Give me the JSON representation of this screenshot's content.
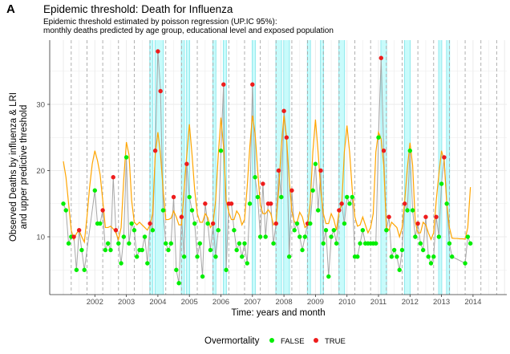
{
  "panel_label": "A",
  "chart_data": {
    "type": "line",
    "title": "Epidemic threshold: Death for Influenza",
    "subtitle_lines": [
      "Epidemic threshold estimated by poisson regression (UP.IC 95%):",
      "monthly deaths predicted by age group, educational level and exposed population"
    ],
    "xlabel": "Time: years and month",
    "ylabel_lines": [
      "Observed Deaths by influenza & LRI",
      "and upper predictive threshold"
    ],
    "x_ticks": [
      "2002",
      "2003",
      "2004",
      "2005",
      "2006",
      "2007",
      "2008",
      "2009",
      "2010",
      "2011",
      "2012",
      "2013",
      "2014"
    ],
    "y_ticks": [
      10,
      20,
      30
    ],
    "ylim": [
      2,
      40
    ],
    "xlim": [
      "2000-01",
      "2014-12"
    ],
    "grid": true,
    "legend": {
      "position": "bottom",
      "title": "Overmortality",
      "entries": [
        "FALSE",
        "TRUE"
      ]
    },
    "colors": {
      "false": "#00ee00",
      "true": "#ee1c1c",
      "observed_line": "#a6a6a6",
      "threshold_line": "#ffa500",
      "band": "#c8fbfb",
      "band_edge": "#7fe5ea"
    },
    "threshold": {
      "start": "2001-01",
      "values": [
        21.4,
        19,
        15,
        11,
        9.6,
        10.5,
        11,
        10,
        9.2,
        13,
        17.5,
        21,
        23,
        21.5,
        19.4,
        15.5,
        11.4,
        11.4,
        11.6,
        11.2,
        10.6,
        9.6,
        11.4,
        18.7,
        24.3,
        22.4,
        15.5,
        12.2,
        11.8,
        12.2,
        11.8,
        11.4,
        11,
        11.8,
        13.5,
        22.4,
        25.8,
        22.4,
        17.1,
        12.6,
        12.6,
        12.8,
        13.9,
        13,
        11.8,
        11.8,
        17.1,
        22.4,
        27,
        22.4,
        17.1,
        13.5,
        12.2,
        12.2,
        13.5,
        12.9,
        11.4,
        12,
        15.5,
        22.4,
        28,
        23.6,
        15.5,
        13.7,
        12.6,
        12.6,
        13.9,
        13.3,
        11.8,
        12.6,
        17.5,
        23.6,
        28.3,
        25.7,
        20,
        14.8,
        13.5,
        13.5,
        14.1,
        13.5,
        11.8,
        12.2,
        17.1,
        23.6,
        28.3,
        24.8,
        18.7,
        13.9,
        12.2,
        12.2,
        13.7,
        13,
        11.4,
        11.8,
        15,
        22.8,
        27.7,
        22.8,
        17.1,
        13.5,
        12,
        12,
        13.5,
        12.6,
        11,
        13.9,
        14.8,
        22.8,
        26.8,
        22.8,
        17.1,
        13,
        11.6,
        11.8,
        13,
        11.8,
        10.6,
        11.4,
        13.5,
        22.8,
        25.8,
        24.8,
        20.8,
        11.4,
        11,
        12.2,
        11.8,
        11.4,
        10,
        11.4,
        15.5,
        20.4,
        24.2,
        20.8,
        12.2,
        10.6,
        10.6,
        12.2,
        11.8,
        10.6,
        9.6,
        10.6,
        15.5,
        19.5,
        23,
        21.5,
        15,
        11.4,
        9.8,
        9.75,
        9.75,
        9.7,
        9.7,
        9.65,
        11.4,
        17.5
      ]
    },
    "observed": [
      [
        "2001-01",
        15,
        false
      ],
      [
        "2001-02",
        14,
        false
      ],
      [
        "2001-03",
        9,
        false
      ],
      [
        "2001-04",
        10,
        false
      ],
      [
        "2001-05",
        10,
        true
      ],
      [
        "2001-06",
        5,
        false
      ],
      [
        "2001-07",
        11,
        true
      ],
      [
        "2001-08",
        8,
        false
      ],
      [
        "2001-09",
        5,
        false
      ],
      [
        "2002-01",
        17,
        false
      ],
      [
        "2002-02",
        12,
        false
      ],
      [
        "2002-03",
        12,
        false
      ],
      [
        "2002-04",
        14,
        true
      ],
      [
        "2002-05",
        8,
        false
      ],
      [
        "2002-06",
        9,
        false
      ],
      [
        "2002-07",
        8,
        false
      ],
      [
        "2002-08",
        19,
        true
      ],
      [
        "2002-09",
        11,
        true
      ],
      [
        "2002-10",
        9,
        false
      ],
      [
        "2002-11",
        6,
        false
      ],
      [
        "2002-12",
        10,
        false
      ],
      [
        "2003-01",
        22,
        false
      ],
      [
        "2003-02",
        9,
        false
      ],
      [
        "2003-03",
        12,
        false
      ],
      [
        "2003-04",
        11,
        false
      ],
      [
        "2003-05",
        7,
        false
      ],
      [
        "2003-06",
        8,
        false
      ],
      [
        "2003-07",
        8,
        false
      ],
      [
        "2003-08",
        10,
        false
      ],
      [
        "2003-09",
        6,
        false
      ],
      [
        "2003-10",
        12,
        true
      ],
      [
        "2003-11",
        11,
        false
      ],
      [
        "2003-12",
        23,
        true
      ],
      [
        "2004-01",
        38,
        true
      ],
      [
        "2004-02",
        32,
        true
      ],
      [
        "2004-03",
        14,
        false
      ],
      [
        "2004-04",
        9,
        false
      ],
      [
        "2004-05",
        8,
        false
      ],
      [
        "2004-06",
        9,
        false
      ],
      [
        "2004-07",
        16,
        true
      ],
      [
        "2004-08",
        5,
        false
      ],
      [
        "2004-09",
        3,
        false
      ],
      [
        "2004-10",
        13,
        true
      ],
      [
        "2004-11",
        7,
        false
      ],
      [
        "2004-12",
        21,
        true
      ],
      [
        "2005-01",
        16,
        false
      ],
      [
        "2005-02",
        14,
        false
      ],
      [
        "2005-03",
        12,
        false
      ],
      [
        "2005-04",
        7,
        false
      ],
      [
        "2005-05",
        9,
        false
      ],
      [
        "2005-06",
        4,
        false
      ],
      [
        "2005-07",
        15,
        true
      ],
      [
        "2005-08",
        12,
        false
      ],
      [
        "2005-09",
        8,
        false
      ],
      [
        "2005-10",
        12,
        true
      ],
      [
        "2005-11",
        7,
        false
      ],
      [
        "2005-12",
        11,
        false
      ],
      [
        "2006-01",
        23,
        false
      ],
      [
        "2006-02",
        33,
        true
      ],
      [
        "2006-03",
        5,
        false
      ],
      [
        "2006-04",
        15,
        true
      ],
      [
        "2006-05",
        15,
        true
      ],
      [
        "2006-06",
        11,
        false
      ],
      [
        "2006-07",
        8,
        false
      ],
      [
        "2006-08",
        9,
        false
      ],
      [
        "2006-09",
        7,
        false
      ],
      [
        "2006-10",
        9,
        false
      ],
      [
        "2006-11",
        6,
        false
      ],
      [
        "2006-12",
        15,
        false
      ],
      [
        "2007-01",
        33,
        true
      ],
      [
        "2007-02",
        19,
        false
      ],
      [
        "2007-03",
        16,
        false
      ],
      [
        "2007-04",
        10,
        false
      ],
      [
        "2007-05",
        18,
        true
      ],
      [
        "2007-06",
        10,
        false
      ],
      [
        "2007-07",
        15,
        true
      ],
      [
        "2007-08",
        15,
        true
      ],
      [
        "2007-09",
        9,
        false
      ],
      [
        "2007-10",
        12,
        true
      ],
      [
        "2007-11",
        20,
        true
      ],
      [
        "2007-12",
        16,
        false
      ],
      [
        "2008-01",
        29,
        true
      ],
      [
        "2008-02",
        25,
        true
      ],
      [
        "2008-03",
        7,
        false
      ],
      [
        "2008-04",
        17,
        true
      ],
      [
        "2008-05",
        11,
        false
      ],
      [
        "2008-06",
        12,
        false
      ],
      [
        "2008-07",
        10,
        false
      ],
      [
        "2008-08",
        8,
        false
      ],
      [
        "2008-09",
        10,
        false
      ],
      [
        "2008-10",
        12,
        true
      ],
      [
        "2008-11",
        12,
        false
      ],
      [
        "2008-12",
        17,
        false
      ],
      [
        "2009-01",
        21,
        false
      ],
      [
        "2009-02",
        14,
        false
      ],
      [
        "2009-03",
        20,
        true
      ],
      [
        "2009-04",
        9,
        false
      ],
      [
        "2009-05",
        11,
        false
      ],
      [
        "2009-06",
        4,
        false
      ],
      [
        "2009-07",
        10,
        false
      ],
      [
        "2009-08",
        11,
        false
      ],
      [
        "2009-09",
        9,
        false
      ],
      [
        "2009-10",
        14,
        true
      ],
      [
        "2009-11",
        15,
        true
      ],
      [
        "2009-12",
        12,
        false
      ],
      [
        "2010-01",
        16,
        false
      ],
      [
        "2010-02",
        15,
        false
      ],
      [
        "2010-03",
        16,
        false
      ],
      [
        "2010-04",
        7,
        false
      ],
      [
        "2010-05",
        7,
        false
      ],
      [
        "2010-06",
        9,
        false
      ],
      [
        "2010-07",
        11,
        false
      ],
      [
        "2010-08",
        9,
        false
      ],
      [
        "2010-09",
        9,
        false
      ],
      [
        "2010-10",
        9,
        false
      ],
      [
        "2010-11",
        9,
        false
      ],
      [
        "2010-12",
        9,
        false
      ],
      [
        "2011-01",
        25,
        false
      ],
      [
        "2011-02",
        37,
        true
      ],
      [
        "2011-03",
        23,
        true
      ],
      [
        "2011-04",
        11,
        false
      ],
      [
        "2011-05",
        13,
        true
      ],
      [
        "2011-06",
        7,
        false
      ],
      [
        "2011-07",
        8,
        false
      ],
      [
        "2011-08",
        7,
        false
      ],
      [
        "2011-09",
        5,
        false
      ],
      [
        "2011-10",
        8,
        false
      ],
      [
        "2011-11",
        15,
        true
      ],
      [
        "2011-12",
        14,
        false
      ],
      [
        "2012-01",
        23,
        false
      ],
      [
        "2012-02",
        14,
        false
      ],
      [
        "2012-03",
        10,
        false
      ],
      [
        "2012-04",
        12,
        true
      ],
      [
        "2012-05",
        9,
        false
      ],
      [
        "2012-06",
        8,
        false
      ],
      [
        "2012-07",
        13,
        true
      ],
      [
        "2012-08",
        7,
        false
      ],
      [
        "2012-09",
        6,
        false
      ],
      [
        "2012-10",
        7,
        false
      ],
      [
        "2012-11",
        13,
        true
      ],
      [
        "2012-12",
        10,
        false
      ],
      [
        "2013-01",
        18,
        false
      ],
      [
        "2013-02",
        22,
        true
      ],
      [
        "2013-03",
        15,
        false
      ],
      [
        "2013-04",
        9,
        false
      ],
      [
        "2013-05",
        7,
        false
      ],
      [
        "2013-10",
        6,
        false
      ],
      [
        "2013-11",
        10,
        false
      ],
      [
        "2013-12",
        9,
        false
      ]
    ],
    "epidemic_bands": [
      [
        "2003-10",
        "2003-11"
      ],
      [
        "2003-12",
        "2004-03"
      ],
      [
        "2004-10",
        "2004-11"
      ],
      [
        "2004-12",
        "2005-01"
      ],
      [
        "2005-10",
        "2005-11"
      ],
      [
        "2006-02",
        "2006-03"
      ],
      [
        "2007-01",
        "2007-02"
      ],
      [
        "2007-10",
        "2007-12"
      ],
      [
        "2008-01",
        "2008-03"
      ],
      [
        "2008-10",
        "2008-11"
      ],
      [
        "2009-03",
        "2009-04"
      ],
      [
        "2009-10",
        "2009-12"
      ],
      [
        "2011-02",
        "2011-04"
      ],
      [
        "2011-11",
        "2012-01"
      ],
      [
        "2012-12",
        "2013-01"
      ],
      [
        "2013-03",
        "2013-04"
      ]
    ]
  }
}
